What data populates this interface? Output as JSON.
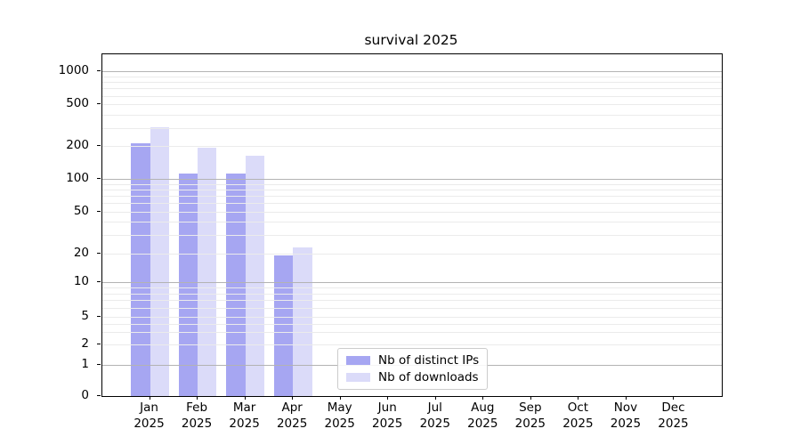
{
  "title": "survival 2025",
  "chart_data": {
    "type": "bar",
    "title": "survival 2025",
    "categories": [
      "Jan",
      "Feb",
      "Mar",
      "Apr",
      "May",
      "Jun",
      "Jul",
      "Aug",
      "Sep",
      "Oct",
      "Nov",
      "Dec"
    ],
    "year_label": "2025",
    "series": [
      {
        "name": "Nb of distinct IPs",
        "color": "#a6a6f2",
        "values": [
          215,
          112,
          112,
          19,
          0,
          0,
          0,
          0,
          0,
          0,
          0,
          0
        ]
      },
      {
        "name": "Nb of downloads",
        "color": "#dbdbf9",
        "values": [
          305,
          196,
          165,
          23,
          0,
          0,
          0,
          0,
          0,
          0,
          0,
          0
        ]
      }
    ],
    "xlabel": "",
    "ylabel": "",
    "yscale": "symlog",
    "yticks": [
      0,
      1,
      2,
      5,
      10,
      20,
      50,
      100,
      200,
      500,
      1000
    ],
    "ylim": [
      0,
      1430
    ],
    "grid": "horizontal major+minor",
    "legend_position": "inside lower-center-left",
    "colors": {
      "major_grid": "#b3b3b3",
      "minor_grid": "#ebebeb",
      "axis": "#000000",
      "text": "#000000"
    },
    "layout": {
      "y_anchors": [
        [
          0,
          0.0
        ],
        [
          1,
          0.0911
        ],
        [
          2,
          0.151
        ],
        [
          5,
          0.2318
        ],
        [
          10,
          0.3333
        ],
        [
          20,
          0.4167
        ],
        [
          50,
          0.5391
        ],
        [
          100,
          0.6354
        ],
        [
          200,
          0.7305
        ],
        [
          500,
          0.8529
        ],
        [
          1000,
          0.9505
        ]
      ],
      "major_grid_values": [
        1,
        10,
        100,
        1000
      ],
      "x_slots": 13,
      "bar_width_frac": 0.4
    }
  }
}
